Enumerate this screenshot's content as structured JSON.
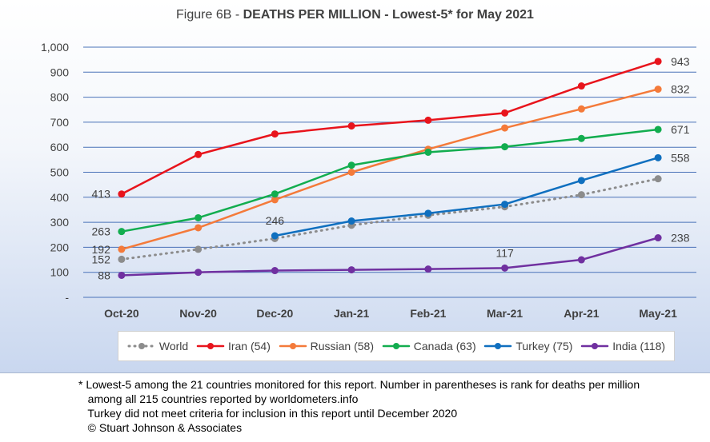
{
  "title": {
    "prefix": "Figure 6B - ",
    "main": "DEATHS PER MILLION - Lowest-5* for May 2021"
  },
  "footnotes": [
    "* Lowest-5 among the 21 countries monitored for this report. Number in parentheses is rank for deaths per million",
    "   among all 215 countries reported by worldometers.info",
    "   Turkey did not meet criteria for inclusion in this report until December 2020",
    "   © Stuart Johnson & Associates"
  ],
  "chart_data": {
    "type": "line",
    "categories": [
      "Oct-20",
      "Nov-20",
      "Dec-20",
      "Jan-21",
      "Feb-21",
      "Mar-21",
      "Apr-21",
      "May-21"
    ],
    "ylim": [
      0,
      1000
    ],
    "yticks": [
      0,
      100,
      200,
      300,
      400,
      500,
      600,
      700,
      800,
      900,
      1000
    ],
    "ytick_labels": [
      "-",
      "100",
      "200",
      "300",
      "400",
      "500",
      "600",
      "700",
      "800",
      "900",
      "1,000"
    ],
    "grid": true,
    "legend_position": "bottom",
    "series": [
      {
        "name": "World",
        "color": "#8c8c8c",
        "dashed": true,
        "values": [
          152,
          192,
          235,
          288,
          328,
          362,
          410,
          474
        ]
      },
      {
        "name": "Iran (54)",
        "color": "#e8141c",
        "dashed": false,
        "values": [
          413,
          571,
          653,
          685,
          708,
          737,
          845,
          943
        ]
      },
      {
        "name": "Russian (58)",
        "color": "#f47a3a",
        "dashed": false,
        "values": [
          192,
          278,
          390,
          500,
          592,
          677,
          753,
          832
        ]
      },
      {
        "name": "Canada (63)",
        "color": "#12ad4f",
        "dashed": false,
        "values": [
          263,
          318,
          413,
          528,
          580,
          602,
          635,
          671
        ]
      },
      {
        "name": "Turkey (75)",
        "color": "#0f6fbf",
        "dashed": false,
        "values": [
          null,
          null,
          246,
          305,
          336,
          372,
          467,
          558
        ]
      },
      {
        "name": "India (118)",
        "color": "#7030a0",
        "dashed": false,
        "values": [
          88,
          100,
          107,
          110,
          113,
          117,
          150,
          238
        ]
      }
    ],
    "data_labels": [
      {
        "series": 1,
        "index": 0,
        "text": "413"
      },
      {
        "series": 3,
        "index": 0,
        "text": "263"
      },
      {
        "series": 2,
        "index": 0,
        "text": "192"
      },
      {
        "series": 0,
        "index": 0,
        "text": "152"
      },
      {
        "series": 5,
        "index": 0,
        "text": "88"
      },
      {
        "series": 4,
        "index": 2,
        "text": "246"
      },
      {
        "series": 5,
        "index": 5,
        "text": "117"
      },
      {
        "series": 1,
        "index": 7,
        "text": "943"
      },
      {
        "series": 2,
        "index": 7,
        "text": "832"
      },
      {
        "series": 3,
        "index": 7,
        "text": "671"
      },
      {
        "series": 4,
        "index": 7,
        "text": "558"
      },
      {
        "series": 5,
        "index": 7,
        "text": "238"
      }
    ]
  }
}
